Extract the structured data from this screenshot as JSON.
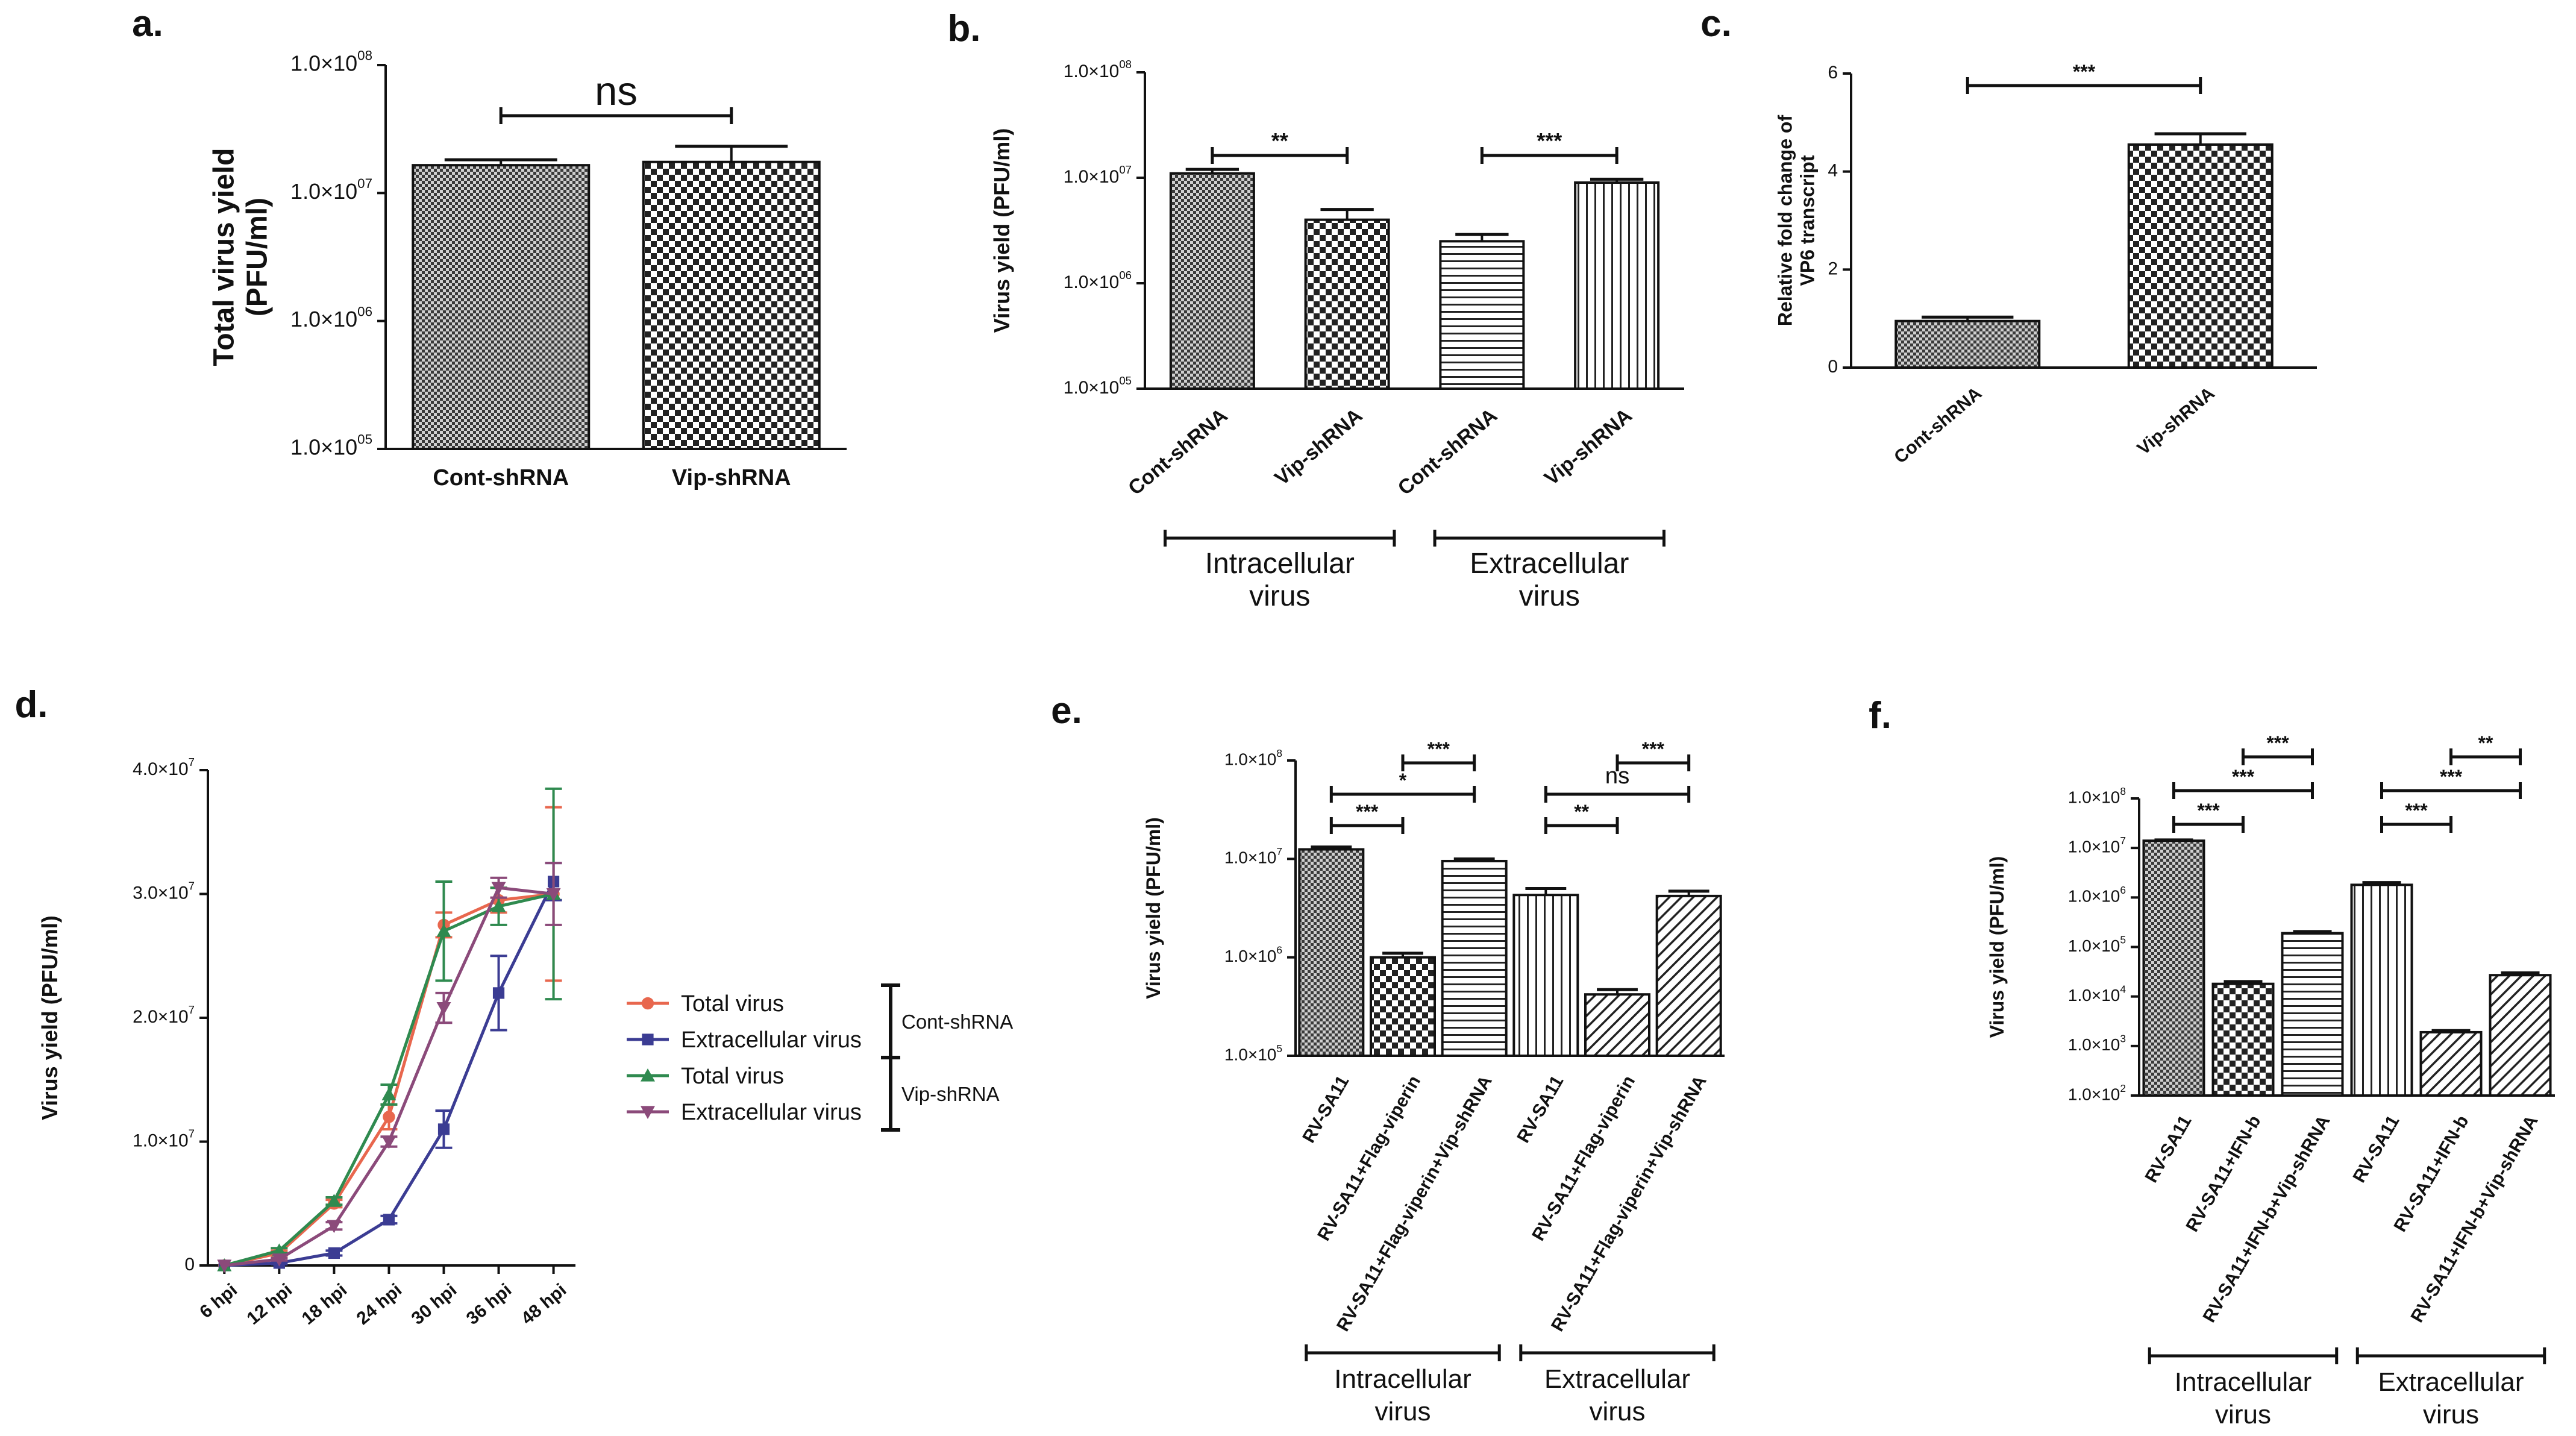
{
  "chart_data": [
    {
      "panel": "a.",
      "type": "bar",
      "ylabel_lines": [
        "Total virus yield",
        "(PFU/ml)"
      ],
      "yscale": "log",
      "ylim": [
        100000,
        100000000
      ],
      "yticks": [
        {
          "value": 100000,
          "label": "1.0×10",
          "exp": "05"
        },
        {
          "value": 1000000,
          "label": "1.0×10",
          "exp": "06"
        },
        {
          "value": 10000000,
          "label": "1.0×10",
          "exp": "07"
        },
        {
          "value": 100000000,
          "label": "1.0×10",
          "exp": "08"
        }
      ],
      "categories": [
        "Cont-shRNA",
        "Vip-shRNA"
      ],
      "values": [
        16500000,
        17500000
      ],
      "errors": [
        1700000,
        5700000
      ],
      "patterns": [
        "fine-check",
        "check"
      ],
      "significance": [
        {
          "from": 0,
          "to": 1,
          "label": "ns"
        }
      ]
    },
    {
      "panel": "b.",
      "type": "bar",
      "ylabel_lines": [
        "Virus yield (PFU/ml)"
      ],
      "yscale": "log",
      "ylim": [
        100000,
        100000000
      ],
      "yticks": [
        {
          "value": 100000,
          "label": "1.0×10",
          "exp": "05"
        },
        {
          "value": 1000000,
          "label": "1.0×10",
          "exp": "06"
        },
        {
          "value": 10000000,
          "label": "1.0×10",
          "exp": "07"
        },
        {
          "value": 100000000,
          "label": "1.0×10",
          "exp": "08"
        }
      ],
      "categories": [
        "Cont-shRNA",
        "Vip-shRNA",
        "Cont-shRNA",
        "Vip-shRNA"
      ],
      "values": [
        11000000,
        4000000,
        2500000,
        9000000
      ],
      "errors": [
        1000000,
        1000000,
        400000,
        700000
      ],
      "patterns": [
        "fine-check",
        "check",
        "hlines",
        "vlines"
      ],
      "significance": [
        {
          "from": 0,
          "to": 1,
          "label": "**"
        },
        {
          "from": 2,
          "to": 3,
          "label": "***"
        }
      ],
      "groups": [
        {
          "from": 0,
          "to": 1,
          "lines": [
            "Intracellular",
            "virus"
          ]
        },
        {
          "from": 2,
          "to": 3,
          "lines": [
            "Extracellular",
            "virus"
          ]
        }
      ]
    },
    {
      "panel": "c.",
      "type": "bar",
      "ylabel_lines": [
        "Relative fold change of",
        "VP6 transcript"
      ],
      "yscale": "linear",
      "ylim": [
        0,
        6
      ],
      "yticks": [
        {
          "value": 0,
          "label": "0"
        },
        {
          "value": 2,
          "label": "2"
        },
        {
          "value": 4,
          "label": "4"
        },
        {
          "value": 6,
          "label": "6"
        }
      ],
      "categories": [
        "Cont-shRNA",
        "Vip-shRNA"
      ],
      "values": [
        0.95,
        4.55
      ],
      "errors": [
        0.08,
        0.22
      ],
      "patterns": [
        "fine-check",
        "check"
      ],
      "significance": [
        {
          "from": 0,
          "to": 1,
          "label": "***"
        }
      ]
    },
    {
      "panel": "d.",
      "type": "line",
      "ylabel_lines": [
        "Virus yield (PFU/ml)"
      ],
      "ylim": [
        0,
        40000000
      ],
      "yticks": [
        {
          "value": 0,
          "label": "0"
        },
        {
          "value": 10000000,
          "label": "1.0×10",
          "exp": "7"
        },
        {
          "value": 20000000,
          "label": "2.0×10",
          "exp": "7"
        },
        {
          "value": 30000000,
          "label": "3.0×10",
          "exp": "7"
        },
        {
          "value": 40000000,
          "label": "4.0×10",
          "exp": "7"
        }
      ],
      "x": [
        "6 hpi",
        "12 hpi",
        "18 hpi",
        "24 hpi",
        "30 hpi",
        "36 hpi",
        "48 hpi"
      ],
      "series": [
        {
          "name": "Total virus",
          "group": "Cont-shRNA",
          "color": "#e8674e",
          "marker": "circle",
          "values": [
            0,
            1000000,
            5000000,
            12000000,
            27500000,
            29500000,
            30000000
          ],
          "errors": [
            0,
            200000,
            300000,
            1000000,
            1000000,
            1000000,
            7000000
          ]
        },
        {
          "name": "Extracellular virus",
          "group": "Cont-shRNA",
          "color": "#3b3c93",
          "marker": "square",
          "values": [
            0,
            200000,
            1000000,
            3700000,
            11000000,
            22000000,
            31000000
          ],
          "errors": [
            0,
            100000,
            200000,
            300000,
            1500000,
            3000000,
            1500000
          ]
        },
        {
          "name": "Total virus",
          "group": "Vip-shRNA",
          "color": "#2f8a4f",
          "marker": "triangle-up",
          "values": [
            0,
            1200000,
            5200000,
            13800000,
            27000000,
            29000000,
            30000000
          ],
          "errors": [
            0,
            200000,
            300000,
            800000,
            4000000,
            1500000,
            8500000
          ]
        },
        {
          "name": "Extracellular virus",
          "group": "Vip-shRNA",
          "color": "#8b4a7a",
          "marker": "triangle-down",
          "values": [
            0,
            500000,
            3200000,
            10000000,
            20800000,
            30500000,
            30000000
          ],
          "errors": [
            0,
            100000,
            300000,
            400000,
            1200000,
            800000,
            2500000
          ]
        }
      ],
      "legend_groups": [
        "Cont-shRNA",
        "Vip-shRNA"
      ]
    },
    {
      "panel": "e.",
      "type": "bar",
      "ylabel_lines": [
        "Virus yield (PFU/ml)"
      ],
      "yscale": "log",
      "ylim": [
        100000,
        100000000
      ],
      "yticks": [
        {
          "value": 100000,
          "label": "1.0×10",
          "exp": "5"
        },
        {
          "value": 1000000,
          "label": "1.0×10",
          "exp": "6"
        },
        {
          "value": 10000000,
          "label": "1.0×10",
          "exp": "7"
        },
        {
          "value": 100000000,
          "label": "1.0×10",
          "exp": "8"
        }
      ],
      "categories": [
        "RV-SA11",
        "RV-SA11+Flag-viperin",
        "RV-SA11+Flag-viperin+Vip-shRNA",
        "RV-SA11",
        "RV-SA11+Flag-viperin",
        "RV-SA11+Flag-viperin+Vip-shRNA"
      ],
      "values": [
        12500000,
        1000000,
        9500000,
        4300000,
        420000,
        4200000
      ],
      "errors": [
        700000,
        100000,
        500000,
        700000,
        50000,
        500000
      ],
      "patterns": [
        "fine-check",
        "check",
        "hlines",
        "vlines",
        "diag",
        "diag"
      ],
      "significance": [
        {
          "from": 1,
          "to": 2,
          "label": "***",
          "level": 3
        },
        {
          "from": 0,
          "to": 2,
          "label": "*",
          "level": 2
        },
        {
          "from": 0,
          "to": 1,
          "label": "***",
          "level": 1
        },
        {
          "from": 4,
          "to": 5,
          "label": "***",
          "level": 3
        },
        {
          "from": 3,
          "to": 5,
          "label": "ns",
          "level": 2
        },
        {
          "from": 3,
          "to": 4,
          "label": "**",
          "level": 1
        }
      ],
      "groups": [
        {
          "from": 0,
          "to": 2,
          "lines": [
            "Intracellular",
            "virus"
          ]
        },
        {
          "from": 3,
          "to": 5,
          "lines": [
            "Extracellular",
            "virus"
          ]
        }
      ]
    },
    {
      "panel": "f.",
      "type": "bar",
      "ylabel_lines": [
        "Virus yield (PFU/ml)"
      ],
      "yscale": "log",
      "ylim": [
        100,
        100000000
      ],
      "yticks": [
        {
          "value": 100,
          "label": "1.0×10",
          "exp": "2"
        },
        {
          "value": 1000,
          "label": "1.0×10",
          "exp": "3"
        },
        {
          "value": 10000,
          "label": "1.0×10",
          "exp": "4"
        },
        {
          "value": 100000,
          "label": "1.0×10",
          "exp": "5"
        },
        {
          "value": 1000000,
          "label": "1.0×10",
          "exp": "6"
        },
        {
          "value": 10000000,
          "label": "1.0×10",
          "exp": "7"
        },
        {
          "value": 100000000,
          "label": "1.0×10",
          "exp": "8"
        }
      ],
      "categories": [
        "RV-SA11",
        "RV-SA11+IFN-b",
        "RV-SA11+IFN-b+Vip-shRNA",
        "RV-SA11",
        "RV-SA11+IFN-b",
        "RV-SA11+IFN-b+Vip-shRNA"
      ],
      "values": [
        14000000,
        18000,
        190000,
        1800000,
        1900,
        27000
      ],
      "errors": [
        500000,
        2000,
        15000,
        200000,
        150,
        3000
      ],
      "patterns": [
        "fine-check",
        "check",
        "hlines",
        "vlines",
        "diag",
        "diag"
      ],
      "significance": [
        {
          "from": 1,
          "to": 2,
          "label": "***",
          "level": 3
        },
        {
          "from": 0,
          "to": 2,
          "label": "***",
          "level": 2
        },
        {
          "from": 0,
          "to": 1,
          "label": "***",
          "level": 1
        },
        {
          "from": 4,
          "to": 5,
          "label": "**",
          "level": 3
        },
        {
          "from": 3,
          "to": 5,
          "label": "***",
          "level": 2
        },
        {
          "from": 3,
          "to": 4,
          "label": "***",
          "level": 1
        }
      ],
      "groups": [
        {
          "from": 0,
          "to": 2,
          "lines": [
            "Intracellular",
            "virus"
          ]
        },
        {
          "from": 3,
          "to": 5,
          "lines": [
            "Extracellular",
            "virus"
          ]
        }
      ]
    }
  ]
}
